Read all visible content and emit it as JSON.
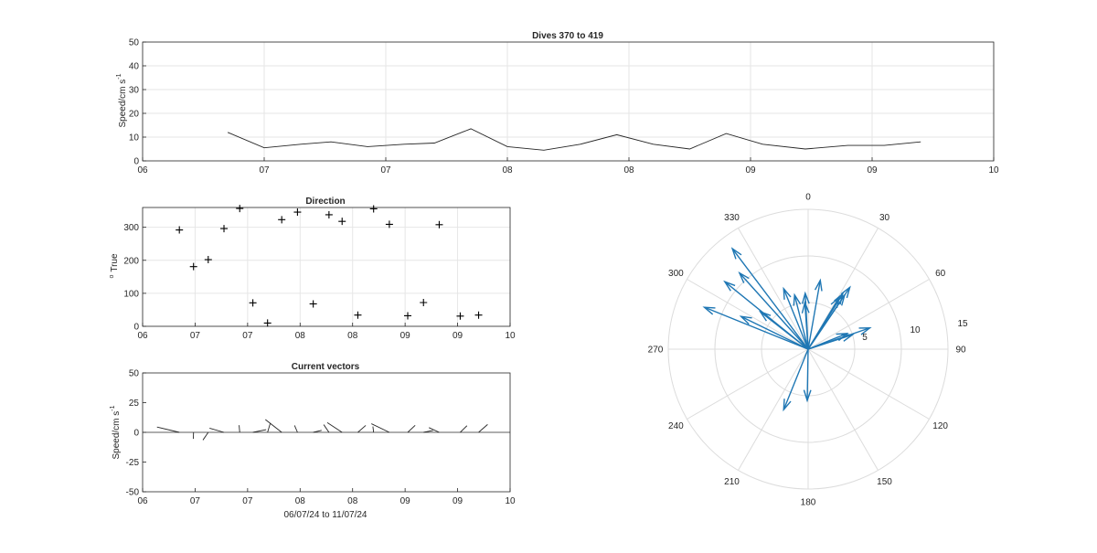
{
  "chart_data": [
    {
      "type": "line",
      "title": "Dives 370 to 419",
      "ylabel": "Speed/cm s-1",
      "ylabel_main": "Speed/cm s",
      "ylabel_sup": "-1",
      "ylim": [
        0,
        50
      ],
      "yticks": [
        0,
        10,
        20,
        30,
        40,
        50
      ],
      "xticks": [
        0,
        1,
        2,
        3,
        4,
        5,
        6,
        7
      ],
      "xtick_labels": [
        "06",
        "07",
        "07",
        "08",
        "08",
        "09",
        "09",
        "10"
      ],
      "xlim": [
        0,
        7
      ],
      "grid": true,
      "x": [
        0.7,
        1.0,
        1.3,
        1.55,
        1.85,
        2.15,
        2.4,
        2.7,
        3.0,
        3.3,
        3.6,
        3.9,
        4.2,
        4.5,
        4.8,
        5.1,
        5.45,
        5.8,
        6.1,
        6.4
      ],
      "y": [
        12,
        5.5,
        7,
        8,
        6,
        7,
        7.5,
        13.5,
        6,
        4.5,
        7,
        11,
        7,
        5,
        11.5,
        7,
        5,
        6.5,
        6.5,
        8
      ]
    },
    {
      "type": "scatter",
      "title": "Direction",
      "ylabel": "o True",
      "ylabel_sup": "o",
      "ylabel_main": "True",
      "ylim": [
        0,
        360
      ],
      "yticks": [
        0,
        100,
        200,
        300
      ],
      "xticks": [
        0,
        1,
        2,
        3,
        4,
        5,
        6,
        7
      ],
      "xtick_labels": [
        "06",
        "07",
        "07",
        "08",
        "08",
        "09",
        "09",
        "10"
      ],
      "xlim": [
        0,
        7
      ],
      "grid": true,
      "x": [
        0.7,
        0.97,
        1.25,
        1.55,
        1.85,
        2.1,
        2.38,
        2.65,
        2.95,
        3.25,
        3.55,
        3.8,
        4.1,
        4.4,
        4.7,
        5.05,
        5.35,
        5.65,
        6.05,
        6.4
      ],
      "y": [
        292,
        181,
        202,
        296,
        357,
        71,
        10,
        323,
        346,
        68,
        338,
        318,
        34,
        356,
        309,
        32,
        72,
        308,
        31,
        34
      ]
    },
    {
      "type": "vector",
      "title": "Current vectors",
      "ylabel": "Speed/cm s-1",
      "ylabel_main": "Speed/cm s",
      "ylabel_sup": "-1",
      "xlabel": "06/07/24 to 11/07/24",
      "ylim": [
        -50,
        50
      ],
      "yticks": [
        -50,
        -25,
        0,
        25,
        50
      ],
      "ytick_labels": [
        "-50",
        "-25",
        "0",
        "25",
        "50"
      ],
      "xticks": [
        0,
        1,
        2,
        3,
        4,
        5,
        6,
        7
      ],
      "xtick_labels": [
        "06",
        "07",
        "07",
        "08",
        "08",
        "09",
        "09",
        "10"
      ],
      "xlim": [
        0,
        7
      ],
      "grid": false,
      "x": [
        0.7,
        0.97,
        1.25,
        1.55,
        1.85,
        2.1,
        2.38,
        2.65,
        2.95,
        3.25,
        3.55,
        3.8,
        4.1,
        4.4,
        4.7,
        5.05,
        5.35,
        5.65,
        6.05,
        6.4
      ],
      "speed": [
        12,
        5.5,
        7,
        8,
        6,
        7,
        7.5,
        13.5,
        6,
        4.5,
        7,
        11,
        7,
        5,
        11.5,
        7,
        5,
        6.5,
        6.5,
        8
      ],
      "direction": [
        292,
        181,
        202,
        296,
        357,
        71,
        10,
        323,
        346,
        68,
        338,
        318,
        34,
        356,
        309,
        32,
        72,
        308,
        31,
        34
      ]
    },
    {
      "type": "polar-compass",
      "angle_labels": [
        "0",
        "30",
        "60",
        "90",
        "120",
        "150",
        "180",
        "210",
        "240",
        "270",
        "300",
        "330"
      ],
      "radial_labels": [
        "5",
        "10",
        "15"
      ],
      "rmax": 15,
      "vectors_speed": [
        12,
        5.5,
        7,
        8,
        6,
        7,
        7.5,
        13.5,
        6,
        4.5,
        7,
        11,
        7,
        5,
        11.5,
        7,
        5,
        6.5,
        6.5,
        8
      ],
      "vectors_direction": [
        292,
        181,
        202,
        296,
        357,
        71,
        10,
        323,
        346,
        68,
        338,
        318,
        34,
        356,
        309,
        32,
        72,
        308,
        31,
        34
      ],
      "color": "#1f77b4"
    }
  ]
}
